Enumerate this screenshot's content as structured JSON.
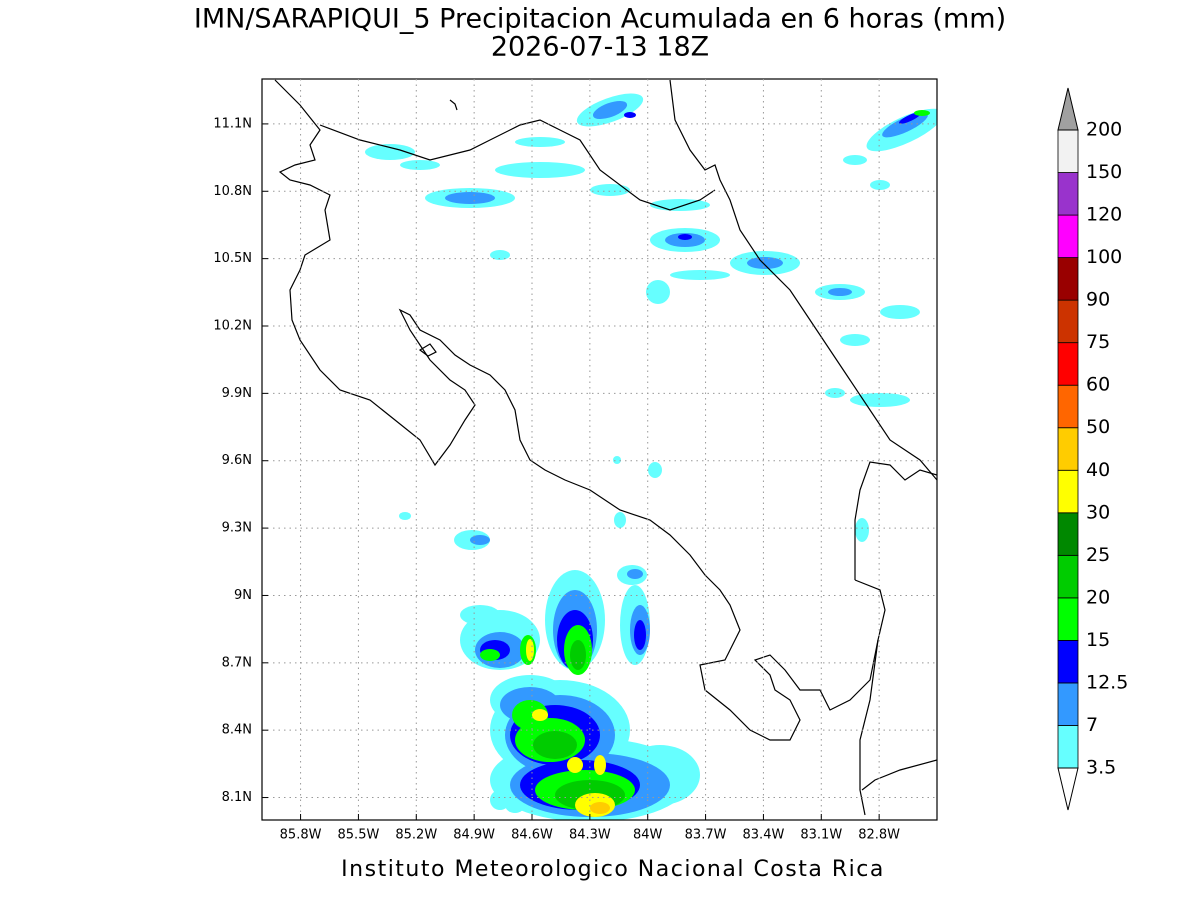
{
  "map": {
    "title": "IMN/SARAPIQUI_5 Precipitacion Acumulada en 6 horas (mm)",
    "subtitle": "2026-07-13 18Z",
    "footer": "Instituto Meteorologico Nacional Costa Rica",
    "xlim": [
      -86.0,
      -82.5
    ],
    "ylim": [
      8.0,
      11.3
    ],
    "lon_ticks": [
      {
        "value": -85.8,
        "label": "85.8W"
      },
      {
        "value": -85.5,
        "label": "85.5W"
      },
      {
        "value": -85.2,
        "label": "85.2W"
      },
      {
        "value": -84.9,
        "label": "84.9W"
      },
      {
        "value": -84.6,
        "label": "84.6W"
      },
      {
        "value": -84.3,
        "label": "84.3W"
      },
      {
        "value": -84.0,
        "label": "84W"
      },
      {
        "value": -83.7,
        "label": "83.7W"
      },
      {
        "value": -83.4,
        "label": "83.4W"
      },
      {
        "value": -83.1,
        "label": "83.1W"
      },
      {
        "value": -82.8,
        "label": "82.8W"
      }
    ],
    "lat_ticks": [
      {
        "value": 8.1,
        "label": "8.1N"
      },
      {
        "value": 8.4,
        "label": "8.4N"
      },
      {
        "value": 8.7,
        "label": "8.7N"
      },
      {
        "value": 9.0,
        "label": "9N"
      },
      {
        "value": 9.3,
        "label": "9.3N"
      },
      {
        "value": 9.6,
        "label": "9.6N"
      },
      {
        "value": 9.9,
        "label": "9.9N"
      },
      {
        "value": 10.2,
        "label": "10.2N"
      },
      {
        "value": 10.5,
        "label": "10.5N"
      },
      {
        "value": 10.8,
        "label": "10.8N"
      },
      {
        "value": 11.1,
        "label": "11.1N"
      }
    ],
    "grid": true,
    "colorbar": {
      "levels": [
        3.5,
        7,
        12.5,
        15,
        20,
        25,
        30,
        40,
        50,
        60,
        75,
        90,
        100,
        120,
        150,
        200
      ],
      "colors": [
        "#66ffff",
        "#3399ff",
        "#0000ff",
        "#00ff00",
        "#00cc00",
        "#008800",
        "#ffff00",
        "#ffcc00",
        "#ff6600",
        "#ff0000",
        "#cc3300",
        "#990000",
        "#ff00ff",
        "#9933cc",
        "#f2f2f2"
      ],
      "under_color": "#ffffff",
      "over_color": "#a0a0a0"
    }
  }
}
